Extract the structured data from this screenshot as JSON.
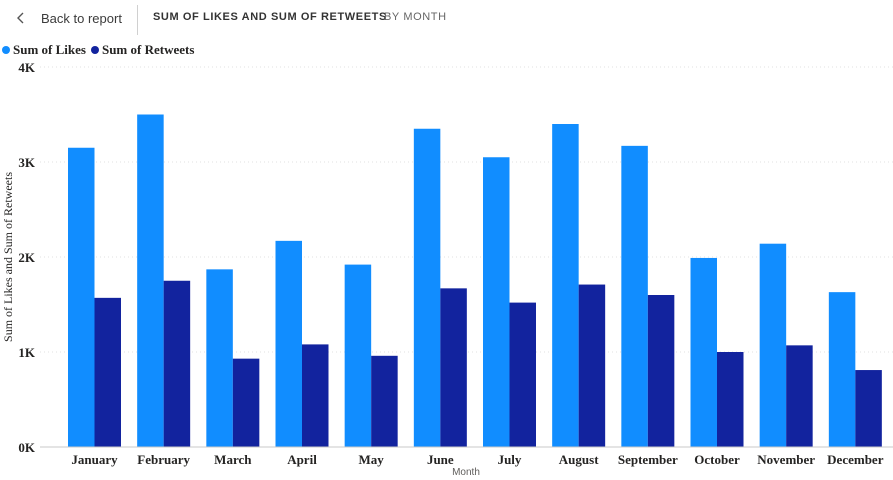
{
  "header": {
    "back_label": "Back to report",
    "title": "SUM OF LIKES AND SUM OF RETWEETS",
    "subtitle": "BY MONTH"
  },
  "icons": {
    "back": "chevron-left-icon"
  },
  "colors": {
    "likes": "#118dff",
    "retweets": "#12239e"
  },
  "chart_data": {
    "type": "bar",
    "categories": [
      "January",
      "February",
      "March",
      "April",
      "May",
      "June",
      "July",
      "August",
      "September",
      "October",
      "November",
      "December"
    ],
    "series": [
      {
        "name": "Sum of Likes",
        "values": [
          3150,
          3500,
          1870,
          2170,
          1920,
          3350,
          3050,
          3400,
          3170,
          1990,
          2140,
          1630
        ]
      },
      {
        "name": "Sum of Retweets",
        "values": [
          1570,
          1750,
          930,
          1080,
          960,
          1670,
          1520,
          1710,
          1600,
          1000,
          1070,
          810
        ]
      }
    ],
    "xlabel": "Month",
    "ylabel": "Sum of Likes and Sum of Retweets",
    "ylim": [
      0,
      4000
    ],
    "yticks": [
      "0K",
      "1K",
      "2K",
      "3K",
      "4K"
    ],
    "grid": true,
    "legend_position": "top-left"
  }
}
